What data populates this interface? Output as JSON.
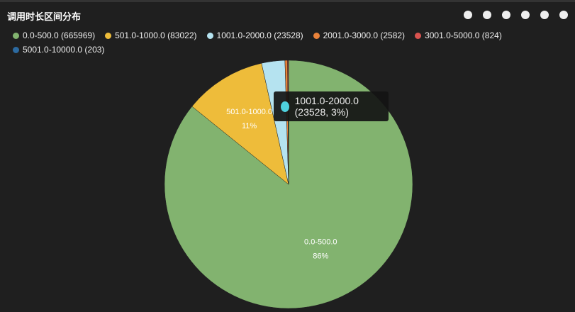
{
  "chart_data": {
    "type": "pie",
    "title": "调用时长区间分布",
    "categories": [
      "0.0-500.0",
      "501.0-1000.0",
      "1001.0-2000.0",
      "2001.0-3000.0",
      "3001.0-5000.0",
      "5001.0-10000.0"
    ],
    "values": [
      665969,
      83022,
      23528,
      2582,
      824,
      203
    ],
    "colors": [
      "#82b36f",
      "#eebc3a",
      "#b5e3f0",
      "#e9823a",
      "#d9534f",
      "#2c6aa0"
    ],
    "legend_labels": [
      "0.0-500.0 (665969)",
      "501.0-1000.0 (83022)",
      "1001.0-2000.0 (23528)",
      "2001.0-3000.0 (2582)",
      "3001.0-5000.0 (824)",
      "5001.0-10000.0 (203)"
    ],
    "value_labels": [
      "86%",
      "11%",
      null,
      null,
      null,
      null
    ],
    "tooltip": {
      "text": "1001.0-2000.0 (23528, 3%)",
      "color": "#4fd1de"
    }
  }
}
